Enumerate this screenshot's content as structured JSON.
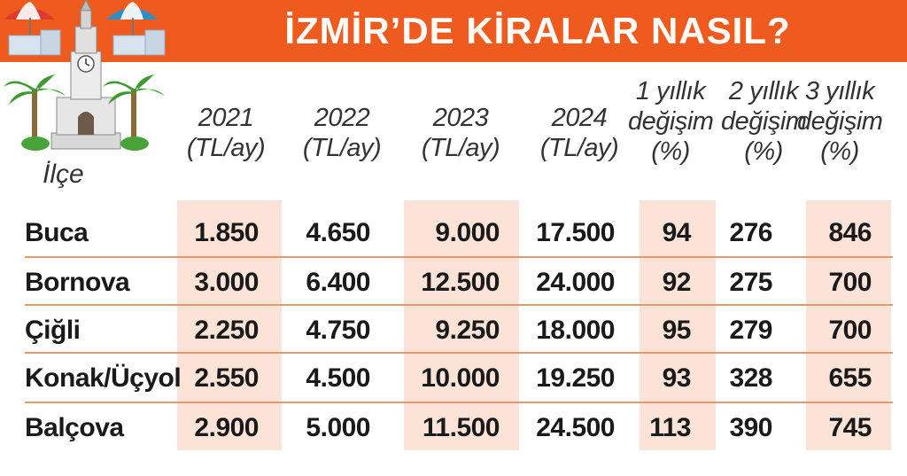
{
  "title": "İZMİR’DE KİRALAR NASIL?",
  "colors": {
    "banner": "#ef5a1e",
    "shade": "#fbe3d8",
    "separator": "#e49a6e"
  },
  "chart_data": {
    "type": "table",
    "row_header_label": "İlçe",
    "columns": [
      {
        "key": "y2021",
        "lines": [
          "2021",
          "(TL/ay)"
        ]
      },
      {
        "key": "y2022",
        "lines": [
          "2022",
          "(TL/ay)"
        ]
      },
      {
        "key": "y2023",
        "lines": [
          "2023",
          "(TL/ay)"
        ]
      },
      {
        "key": "y2024",
        "lines": [
          "2024",
          "(TL/ay)"
        ]
      },
      {
        "key": "ch1",
        "lines": [
          "1 yıllık",
          "değişim",
          "(%)"
        ]
      },
      {
        "key": "ch2",
        "lines": [
          "2 yıllık",
          "değişim",
          "(%)"
        ]
      },
      {
        "key": "ch3",
        "lines": [
          "3 yıllık",
          "değişim",
          "(%)"
        ]
      }
    ],
    "rows": [
      {
        "district": "Buca",
        "values": [
          "1.850",
          "4.650",
          "9.000",
          "17.500",
          "94",
          "276",
          "846"
        ]
      },
      {
        "district": "Bornova",
        "values": [
          "3.000",
          "6.400",
          "12.500",
          "24.000",
          "92",
          "275",
          "700"
        ]
      },
      {
        "district": "Çiğli",
        "values": [
          "2.250",
          "4.750",
          "9.250",
          "18.000",
          "95",
          "279",
          "700"
        ]
      },
      {
        "district": "Konak/Üçyol",
        "values": [
          "2.550",
          "4.500",
          "10.000",
          "19.250",
          "93",
          "328",
          "655"
        ]
      },
      {
        "district": "Balçova",
        "values": [
          "2.900",
          "5.000",
          "11.500",
          "24.500",
          "113",
          "390",
          "745"
        ]
      }
    ]
  }
}
